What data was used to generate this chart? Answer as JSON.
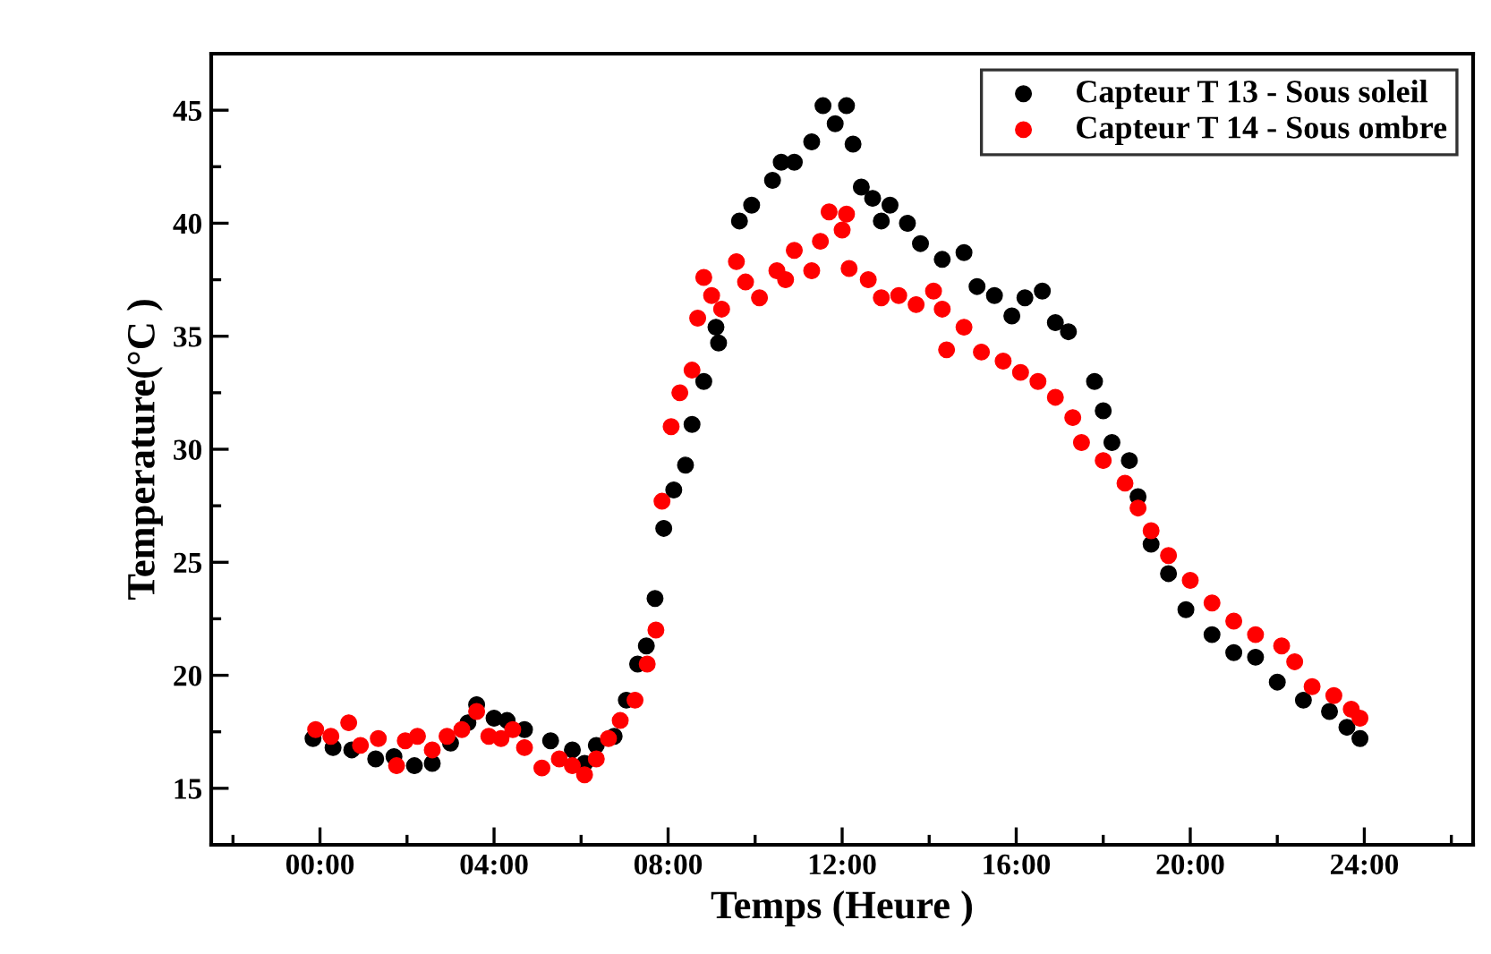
{
  "chart_data": {
    "type": "scatter",
    "xlabel": "Temps (Heure )",
    "ylabel": "Temperature(°C )",
    "xlim": [
      -2.5,
      26.5
    ],
    "ylim": [
      12.5,
      47.5
    ],
    "xticks": [
      {
        "value": -2,
        "label": null
      },
      {
        "value": 0,
        "label": "00:00"
      },
      {
        "value": 2,
        "label": null
      },
      {
        "value": 4,
        "label": "04:00"
      },
      {
        "value": 6,
        "label": null
      },
      {
        "value": 8,
        "label": "08:00"
      },
      {
        "value": 10,
        "label": null
      },
      {
        "value": 12,
        "label": "12:00"
      },
      {
        "value": 14,
        "label": null
      },
      {
        "value": 16,
        "label": "16:00"
      },
      {
        "value": 18,
        "label": null
      },
      {
        "value": 20,
        "label": "20:00"
      },
      {
        "value": 22,
        "label": null
      },
      {
        "value": 24,
        "label": "24:00"
      },
      {
        "value": 26,
        "label": null
      }
    ],
    "yticks": [
      15,
      {
        "value": 17.5,
        "label": null
      },
      20,
      {
        "value": 22.5,
        "label": null
      },
      25,
      {
        "value": 27.5,
        "label": null
      },
      30,
      {
        "value": 32.5,
        "label": null
      },
      35,
      {
        "value": 37.5,
        "label": null
      },
      40,
      {
        "value": 42.5,
        "label": null
      },
      45
    ],
    "marker": "circle",
    "legend": "top right",
    "grid": false,
    "series": [
      {
        "name": "Capteur T 13 - Sous soleil",
        "color": "#000000",
        "x": [
          -0.16,
          0.3,
          0.73,
          1.28,
          1.7,
          2.17,
          2.58,
          3.0,
          3.4,
          3.6,
          4.0,
          4.3,
          4.7,
          5.3,
          5.8,
          6.08,
          6.35,
          6.76,
          7.04,
          7.3,
          7.5,
          7.7,
          7.9,
          8.13,
          8.4,
          8.55,
          8.82,
          9.1,
          9.16,
          9.64,
          9.92,
          10.4,
          10.6,
          10.9,
          11.3,
          11.56,
          11.84,
          12.1,
          12.25,
          12.44,
          12.7,
          12.9,
          13.1,
          13.5,
          13.8,
          14.3,
          14.8,
          15.1,
          15.5,
          15.9,
          16.2,
          16.6,
          16.9,
          17.2,
          17.8,
          18.0,
          18.2,
          18.6,
          18.8,
          19.1,
          19.5,
          19.9,
          20.5,
          21.0,
          21.5,
          22.0,
          22.6,
          23.2,
          23.6,
          23.9
        ],
        "values": [
          17.2,
          16.8,
          16.7,
          16.3,
          16.4,
          16.0,
          16.1,
          17.0,
          17.9,
          18.7,
          18.1,
          18.0,
          17.6,
          17.1,
          16.7,
          16.1,
          16.9,
          17.3,
          18.9,
          20.5,
          21.3,
          23.4,
          26.5,
          28.2,
          29.3,
          31.1,
          33.0,
          35.4,
          34.7,
          40.1,
          40.8,
          41.9,
          42.7,
          42.7,
          43.6,
          45.2,
          44.4,
          45.2,
          43.5,
          41.6,
          41.1,
          40.1,
          40.8,
          40.0,
          39.1,
          38.4,
          38.7,
          37.2,
          36.8,
          35.9,
          36.7,
          37.0,
          35.6,
          35.2,
          33.0,
          31.7,
          30.3,
          29.5,
          27.9,
          25.8,
          24.5,
          22.9,
          21.8,
          21.0,
          20.8,
          19.7,
          18.9,
          18.4,
          17.7,
          17.2
        ]
      },
      {
        "name": "Capteur T 14 - Sous ombre",
        "color": "#ff0000",
        "x": [
          -0.1,
          0.25,
          0.66,
          0.93,
          1.34,
          1.76,
          1.96,
          2.24,
          2.58,
          2.92,
          3.26,
          3.6,
          3.88,
          4.16,
          4.43,
          4.7,
          5.1,
          5.5,
          5.8,
          6.08,
          6.35,
          6.63,
          6.9,
          7.24,
          7.52,
          7.72,
          7.86,
          8.07,
          8.27,
          8.55,
          8.68,
          8.82,
          9.0,
          9.23,
          9.57,
          9.78,
          10.1,
          10.5,
          10.7,
          10.9,
          11.3,
          11.5,
          11.7,
          12.0,
          12.1,
          12.16,
          12.6,
          12.9,
          13.3,
          13.7,
          14.1,
          14.3,
          14.4,
          14.8,
          15.2,
          15.7,
          16.1,
          16.5,
          16.9,
          17.3,
          17.5,
          18.0,
          18.5,
          18.8,
          19.1,
          19.5,
          20.0,
          20.5,
          21.0,
          21.5,
          22.1,
          22.4,
          22.8,
          23.3,
          23.7,
          23.9
        ],
        "values": [
          17.6,
          17.3,
          17.9,
          16.9,
          17.2,
          16.0,
          17.1,
          17.3,
          16.7,
          17.3,
          17.6,
          18.4,
          17.3,
          17.2,
          17.6,
          16.8,
          15.9,
          16.3,
          16.0,
          15.6,
          16.3,
          17.2,
          18.0,
          18.9,
          20.5,
          22.0,
          27.7,
          31.0,
          32.5,
          33.5,
          35.8,
          37.6,
          36.8,
          36.2,
          38.3,
          37.4,
          36.7,
          37.9,
          37.5,
          38.8,
          37.9,
          39.2,
          40.5,
          39.7,
          40.4,
          38.0,
          37.5,
          36.7,
          36.8,
          36.4,
          37.0,
          36.2,
          34.4,
          35.4,
          34.3,
          33.9,
          33.4,
          33.0,
          32.3,
          31.4,
          30.3,
          29.5,
          28.5,
          27.4,
          26.4,
          25.3,
          24.2,
          23.2,
          22.4,
          21.8,
          21.3,
          20.6,
          19.5,
          19.1,
          18.5,
          18.1
        ]
      }
    ]
  }
}
